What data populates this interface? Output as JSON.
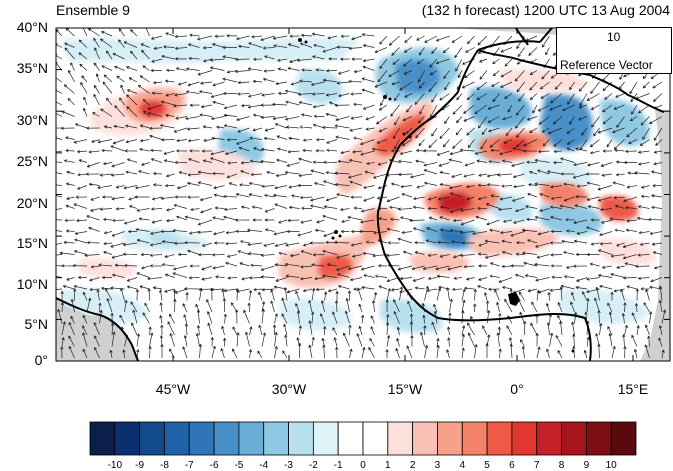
{
  "header": {
    "member": "Ensemble 9",
    "forecast": "(132 h forecast) 1200 UTC 13 Aug 2004"
  },
  "map": {
    "lat_ticks": [
      "40°N",
      "35°N",
      "30°N",
      "25°N",
      "20°N",
      "15°N",
      "10°N",
      "5°N",
      "0°"
    ],
    "lon_ticks": [
      "45°W",
      "30°W",
      "15°W",
      "0°",
      "15°E"
    ],
    "reference_vector": {
      "magnitude": "10",
      "label": "Reference Vector"
    }
  },
  "colorbar": {
    "labels": [
      "-10",
      "-9",
      "-8",
      "-7",
      "-6",
      "-5",
      "-4",
      "-3",
      "-2",
      "-1",
      "0",
      "1",
      "2",
      "3",
      "4",
      "5",
      "6",
      "7",
      "8",
      "9",
      "10"
    ],
    "colors": [
      "#0b1f4a",
      "#0b2f6e",
      "#134a8e",
      "#1f62a8",
      "#2f75b8",
      "#4a90c8",
      "#6aaed8",
      "#8ec8e2",
      "#b8e0ee",
      "#e0f3f8",
      "#ffffff",
      "#ffffff",
      "#fde0dd",
      "#f9c0b4",
      "#f7a08a",
      "#f4826a",
      "#ef5a47",
      "#e03830",
      "#c51f28",
      "#a8141e",
      "#7f0f14",
      "#5a0a0e"
    ]
  }
}
